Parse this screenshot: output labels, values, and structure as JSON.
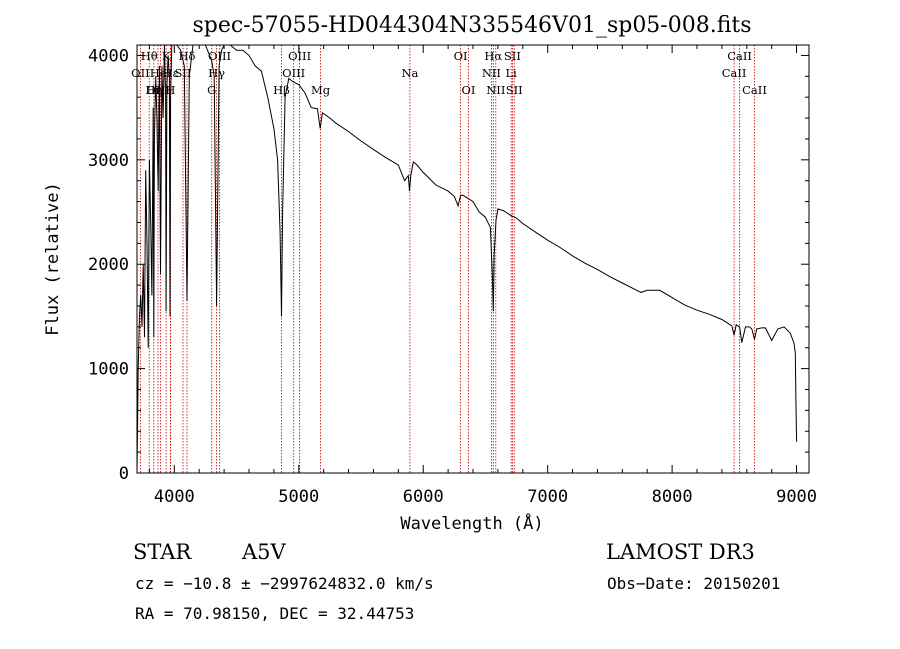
{
  "chart_data": {
    "type": "line",
    "title": "spec-57055-HD044304N335546V01_sp05-008.fits",
    "xlabel": "Wavelength (Å)",
    "ylabel": "Flux (relative)",
    "xlim": [
      3700,
      9100
    ],
    "ylim": [
      0,
      4100
    ],
    "xticks": [
      4000,
      5000,
      6000,
      7000,
      8000,
      9000
    ],
    "xtick_labels": [
      "4000",
      "5000",
      "6000",
      "7000",
      "8000",
      "9000"
    ],
    "yticks": [
      0,
      1000,
      2000,
      3000,
      4000
    ],
    "ytick_labels": [
      "0",
      "1000",
      "2000",
      "3000",
      "4000"
    ],
    "series": [
      {
        "name": "flux",
        "x": [
          3700,
          3710,
          3720,
          3730,
          3740,
          3750,
          3760,
          3770,
          3780,
          3790,
          3800,
          3810,
          3820,
          3830,
          3835,
          3840,
          3850,
          3860,
          3870,
          3880,
          3889,
          3900,
          3910,
          3920,
          3930,
          3934,
          3940,
          3950,
          3960,
          3965,
          3970,
          3980,
          3990,
          4000,
          4020,
          4050,
          4080,
          4102,
          4120,
          4150,
          4200,
          4250,
          4300,
          4320,
          4340,
          4360,
          4380,
          4400,
          4450,
          4500,
          4550,
          4600,
          4650,
          4700,
          4750,
          4800,
          4830,
          4850,
          4861,
          4870,
          4890,
          4920,
          4950,
          5000,
          5050,
          5100,
          5150,
          5172,
          5190,
          5250,
          5300,
          5400,
          5500,
          5600,
          5700,
          5800,
          5850,
          5880,
          5890,
          5900,
          5920,
          5950,
          6000,
          6100,
          6200,
          6250,
          6280,
          6300,
          6320,
          6400,
          6450,
          6500,
          6540,
          6555,
          6563,
          6570,
          6585,
          6600,
          6650,
          6700,
          6750,
          6800,
          6900,
          7000,
          7100,
          7200,
          7300,
          7400,
          7500,
          7600,
          7700,
          7750,
          7800,
          7900,
          8000,
          8100,
          8200,
          8300,
          8400,
          8480,
          8498,
          8515,
          8542,
          8560,
          8590,
          8620,
          8640,
          8662,
          8680,
          8720,
          8750,
          8800,
          8850,
          8900,
          8950,
          8980,
          8990,
          8995,
          9000
        ],
        "y": [
          0,
          1000,
          1500,
          1700,
          1400,
          2000,
          1300,
          2900,
          2200,
          1200,
          3000,
          2400,
          1700,
          3500,
          1300,
          3200,
          3800,
          3400,
          2700,
          3900,
          1900,
          3900,
          3400,
          4100,
          3600,
          1550,
          3700,
          4000,
          3800,
          1500,
          3600,
          4150,
          4100,
          4150,
          4200,
          4050,
          3900,
          1650,
          3800,
          4250,
          4150,
          4150,
          3950,
          3800,
          1600,
          3900,
          4050,
          4100,
          4100,
          4050,
          4050,
          4000,
          3900,
          3850,
          3600,
          3300,
          3000,
          2300,
          1500,
          2500,
          3600,
          3780,
          3750,
          3720,
          3640,
          3500,
          3490,
          3300,
          3450,
          3400,
          3350,
          3270,
          3180,
          3100,
          3020,
          2950,
          2800,
          2850,
          2700,
          2850,
          2980,
          2950,
          2880,
          2760,
          2700,
          2650,
          2560,
          2660,
          2660,
          2600,
          2500,
          2450,
          2350,
          1900,
          1550,
          2100,
          2420,
          2530,
          2510,
          2470,
          2440,
          2390,
          2310,
          2230,
          2160,
          2080,
          2010,
          1950,
          1880,
          1820,
          1760,
          1730,
          1750,
          1750,
          1680,
          1610,
          1560,
          1520,
          1470,
          1410,
          1320,
          1420,
          1400,
          1250,
          1400,
          1400,
          1380,
          1280,
          1380,
          1390,
          1390,
          1270,
          1380,
          1400,
          1340,
          1240,
          1150,
          700,
          300
        ]
      }
    ],
    "line_markers": [
      {
        "wl": 3727,
        "label": "OII",
        "row": 1
      },
      {
        "wl": 3798,
        "label": "Hθ",
        "row": 0
      },
      {
        "wl": 3835,
        "label": "Hη",
        "row": 2
      },
      {
        "wl": 3869,
        "label": "OIII",
        "row": 2
      },
      {
        "wl": 3889,
        "label": "HeI",
        "row": 1
      },
      {
        "wl": 3934,
        "label": "K",
        "row": 0
      },
      {
        "wl": 3968,
        "label": "H",
        "row": 2
      },
      {
        "wl": 3970,
        "label": "Hε",
        "row": 1
      },
      {
        "wl": 4070,
        "label": "SII",
        "row": 1
      },
      {
        "wl": 4102,
        "label": "Hδ",
        "row": 0
      },
      {
        "wl": 4300,
        "label": "G",
        "row": 2
      },
      {
        "wl": 4340,
        "label": "Hγ",
        "row": 1
      },
      {
        "wl": 4363,
        "label": "OIII",
        "row": 0
      },
      {
        "wl": 4861,
        "label": "Hβ",
        "row": 2
      },
      {
        "wl": 4959,
        "label": "OIII",
        "row": 1
      },
      {
        "wl": 5007,
        "label": "OIII",
        "row": 0
      },
      {
        "wl": 5175,
        "label": "Mg",
        "row": 2
      },
      {
        "wl": 5893,
        "label": "Na",
        "row": 1
      },
      {
        "wl": 6300,
        "label": "OI",
        "row": 0
      },
      {
        "wl": 6364,
        "label": "OI",
        "row": 2
      },
      {
        "wl": 6548,
        "label": "NII",
        "row": 1
      },
      {
        "wl": 6563,
        "label": "Hα",
        "row": 0
      },
      {
        "wl": 6583,
        "label": "NII",
        "row": 2
      },
      {
        "wl": 6707,
        "label": "Li",
        "row": 1
      },
      {
        "wl": 6717,
        "label": "SII",
        "row": 0
      },
      {
        "wl": 6731,
        "label": "SII",
        "row": 2
      },
      {
        "wl": 8498,
        "label": "CaII",
        "row": 1
      },
      {
        "wl": 8542,
        "label": "CaII",
        "row": 0
      },
      {
        "wl": 8662,
        "label": "CaII",
        "row": 2
      }
    ],
    "marker_color": "#cc0000",
    "line_color": "#000000"
  },
  "info": {
    "object_class": "STAR",
    "subclass": "A5V",
    "survey": "LAMOST DR3",
    "redshift": "cz = −10.8 ± −2997624832.0 km/s",
    "obs_date": "Obs−Date: 20150201",
    "coords": "RA =  70.98150, DEC =  32.44753"
  }
}
